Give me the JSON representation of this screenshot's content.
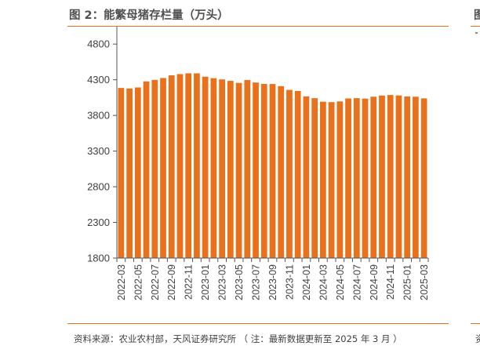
{
  "header": {
    "title": "图 2：能繁母猪存栏量（万头）",
    "right_fragment": "图"
  },
  "footer": {
    "source": "资料来源：农业农村部，天风证券研究所 （ 注：最新数据更新至 2025 年 3 月 ）",
    "right_fragment": "资"
  },
  "colors": {
    "bar": "#e9711c",
    "accent_line": "#e9711c",
    "axis": "#555555",
    "text": "#404040"
  },
  "chart_data": {
    "type": "bar",
    "title": "能繁母猪存栏量（万头）",
    "xlabel": "",
    "ylabel": "",
    "ylim": [
      1800,
      5000
    ],
    "yticks": [
      1800,
      2300,
      2800,
      3300,
      3800,
      4300,
      4800
    ],
    "grid": false,
    "legend": "none",
    "categories": [
      "2022-03",
      "2022-04",
      "2022-05",
      "2022-06",
      "2022-07",
      "2022-08",
      "2022-09",
      "2022-10",
      "2022-11",
      "2022-12",
      "2023-01",
      "2023-02",
      "2023-03",
      "2023-04",
      "2023-05",
      "2023-06",
      "2023-07",
      "2023-08",
      "2023-09",
      "2023-10",
      "2023-11",
      "2023-12",
      "2024-01",
      "2024-02",
      "2024-03",
      "2024-04",
      "2024-05",
      "2024-06",
      "2024-07",
      "2024-08",
      "2024-09",
      "2024-10",
      "2024-11",
      "2024-12",
      "2025-01",
      "2025-02",
      "2025-03"
    ],
    "tick_labels": [
      "2022-03",
      "2022-05",
      "2022-07",
      "2022-09",
      "2022-11",
      "2023-01",
      "2023-03",
      "2023-05",
      "2023-07",
      "2023-09",
      "2023-11",
      "2024-01",
      "2024-03",
      "2024-05",
      "2024-07",
      "2024-09",
      "2024-11",
      "2025-01",
      "2025-03"
    ],
    "values": [
      4185,
      4177,
      4192,
      4277,
      4298,
      4324,
      4362,
      4379,
      4390,
      4390,
      4343,
      4322,
      4305,
      4284,
      4256,
      4296,
      4261,
      4241,
      4240,
      4210,
      4158,
      4142,
      4067,
      4042,
      3992,
      3986,
      3996,
      4038,
      4042,
      4036,
      4062,
      4079,
      4086,
      4080,
      4066,
      4062,
      4039
    ]
  }
}
